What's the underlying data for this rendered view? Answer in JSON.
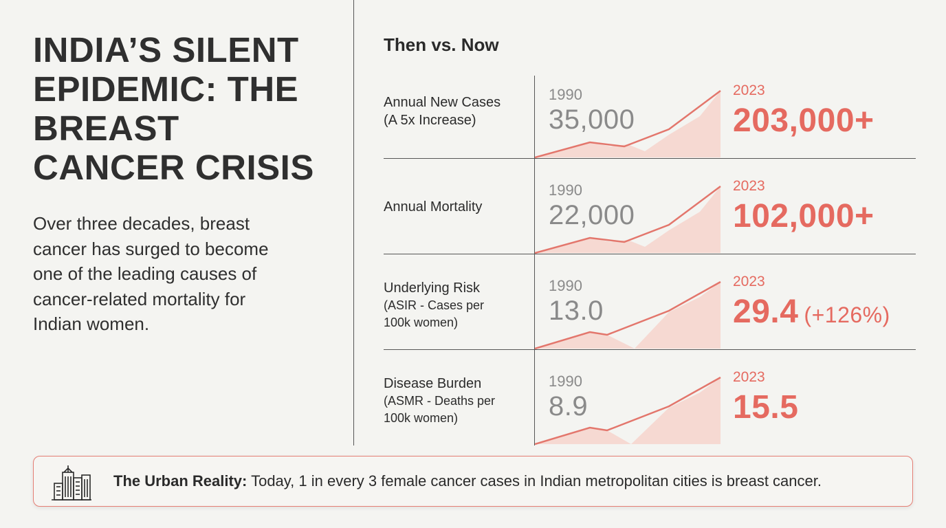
{
  "title_lines": [
    "INDIA’S SILENT",
    "EPIDEMIC: THE",
    "BREAST",
    "CANCER CRISIS"
  ],
  "intro_lines": [
    "Over three decades, breast",
    "cancer has surged to become",
    "one of the leading causes of",
    "cancer-related mortality for",
    "Indian women."
  ],
  "chart_data": {
    "type": "table",
    "title": "Then vs. Now",
    "columns": [
      "1990",
      "2023"
    ],
    "accent_color": "#e56a60",
    "muted_color": "#8a8a8a",
    "rows": [
      {
        "label": "Annual New Cases",
        "sublabel": "(A 5x Increase)",
        "then_year": "1990",
        "then_value": "35,000",
        "now_year": "2023",
        "now_value": "203,000+",
        "now_delta": ""
      },
      {
        "label": "Annual Mortality",
        "sublabel": "",
        "then_year": "1990",
        "then_value": "22,000",
        "now_year": "2023",
        "now_value": "102,000+",
        "now_delta": ""
      },
      {
        "label": "Underlying Risk",
        "sublabel": "(ASIR - Cases per",
        "sublabel2": "100k women)",
        "then_year": "1990",
        "then_value": "13.0",
        "now_year": "2023",
        "now_value": "29.4",
        "now_delta": "(+126%)"
      },
      {
        "label": "Disease Burden",
        "sublabel": "(ASMR - Deaths per",
        "sublabel2": "100k women)",
        "then_year": "1990",
        "then_value": "8.9",
        "now_year": "2023",
        "now_value": "15.5",
        "now_delta": ""
      }
    ]
  },
  "urban": {
    "icon": "city-buildings-icon",
    "bold": "The Urban Reality:",
    "text": " Today, 1 in every 3 female cancer cases in Indian metropolitan cities is breast cancer."
  }
}
